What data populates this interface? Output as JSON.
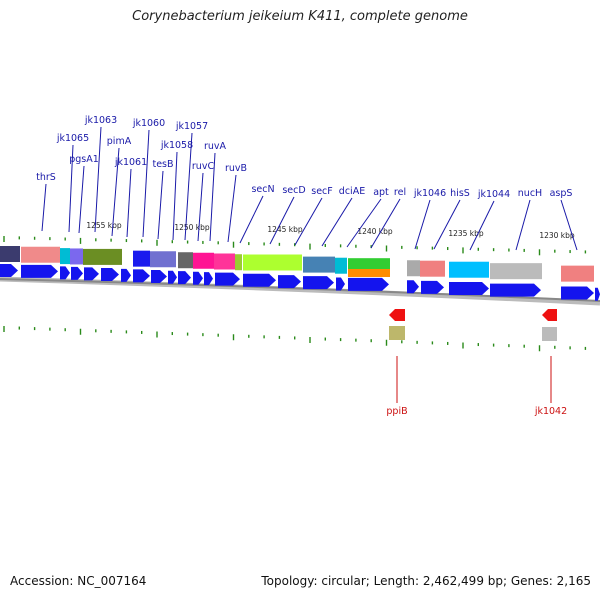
{
  "title": "Corynebacterium jeikeium K411, complete genome",
  "accession_label": "Accession: NC_007164",
  "topology_label": "Topology: circular; Length: 2,462,499 bp; Genes: 2,165",
  "colors": {
    "gene_label_top": "#1a1aa8",
    "gene_label_bottom": "#cc1111",
    "forward_arrow": "#1414ee",
    "reverse_arrow": "#ee1111",
    "tick": "#2a8a1a",
    "backbone": "#888888"
  },
  "scale_ticks": [
    "1255 kbp",
    "1250 kbp",
    "1245 kbp",
    "1240 kbp",
    "1235 kbp",
    "1230 kbp"
  ],
  "top_gene_labels": [
    "jk1063",
    "jk1065",
    "pimA",
    "jk1060",
    "jk1057",
    "pgsA1",
    "jk1058",
    "ruvA",
    "jk1061",
    "tesB",
    "ruvC",
    "thrS",
    "ruvB",
    "secN",
    "secD",
    "secF",
    "dciAE",
    "apt",
    "rel",
    "jk1046",
    "hisS",
    "jk1044",
    "nucH",
    "aspS"
  ],
  "bottom_gene_labels": [
    "ppiB",
    "jk1042"
  ]
}
